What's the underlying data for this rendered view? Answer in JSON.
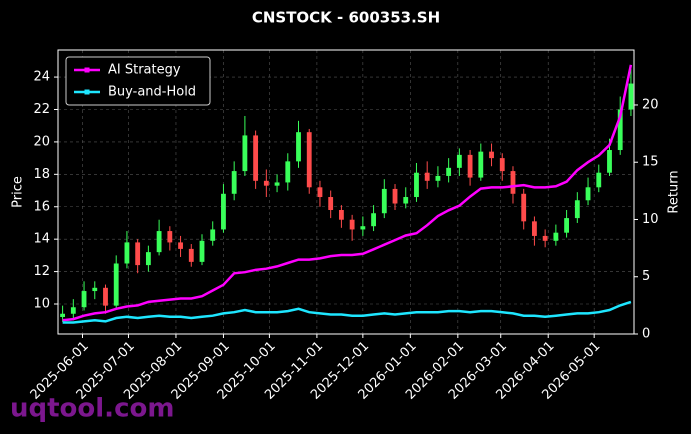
{
  "chart_data": {
    "type": "candlestick",
    "title": "CNSTOCK - 600353.SH",
    "x": [
      "2025-05-19",
      "2025-05-26",
      "2025-06-02",
      "2025-06-09",
      "2025-06-16",
      "2025-06-23",
      "2025-06-30",
      "2025-07-07",
      "2025-07-14",
      "2025-07-21",
      "2025-07-28",
      "2025-08-04",
      "2025-08-11",
      "2025-08-18",
      "2025-08-25",
      "2025-09-01",
      "2025-09-08",
      "2025-09-15",
      "2025-09-22",
      "2025-09-29",
      "2025-10-06",
      "2025-10-13",
      "2025-10-20",
      "2025-10-27",
      "2025-11-03",
      "2025-11-10",
      "2025-11-17",
      "2025-11-24",
      "2025-12-01",
      "2025-12-08",
      "2025-12-15",
      "2025-12-22",
      "2025-12-29",
      "2026-01-05",
      "2026-01-12",
      "2026-01-19",
      "2026-01-26",
      "2026-02-02",
      "2026-02-09",
      "2026-02-16",
      "2026-02-23",
      "2026-03-02",
      "2026-03-09",
      "2026-03-16",
      "2026-03-23",
      "2026-03-30",
      "2026-04-06",
      "2026-04-13",
      "2026-04-20",
      "2026-04-27",
      "2026-05-04",
      "2026-05-11",
      "2026-05-18",
      "2026-05-25"
    ],
    "open": [
      9.2,
      9.4,
      9.8,
      10.8,
      11.0,
      9.9,
      12.5,
      13.8,
      12.4,
      13.2,
      14.5,
      13.8,
      13.4,
      12.6,
      13.9,
      14.6,
      16.8,
      18.2,
      20.4,
      17.6,
      17.3,
      17.5,
      18.8,
      20.6,
      17.2,
      16.6,
      15.8,
      15.2,
      14.6,
      14.8,
      15.6,
      17.1,
      16.2,
      16.6,
      18.1,
      17.6,
      17.9,
      18.4,
      19.2,
      17.8,
      19.4,
      19.0,
      18.2,
      16.8,
      15.1,
      14.2,
      13.9,
      14.4,
      15.3,
      16.4,
      17.2,
      18.1,
      19.5,
      22.0
    ],
    "high": [
      9.9,
      10.3,
      11.4,
      11.4,
      11.2,
      13.0,
      14.5,
      14.0,
      13.6,
      15.2,
      14.8,
      14.2,
      13.7,
      14.3,
      15.1,
      17.4,
      18.8,
      21.6,
      20.7,
      18.3,
      18.0,
      19.3,
      21.3,
      20.8,
      17.6,
      17.0,
      16.1,
      15.5,
      15.4,
      16.1,
      17.7,
      17.4,
      17.2,
      18.7,
      18.8,
      18.5,
      19.0,
      19.6,
      19.5,
      19.9,
      19.9,
      19.3,
      18.5,
      17.1,
      15.4,
      14.6,
      14.9,
      15.8,
      16.9,
      17.8,
      18.6,
      20.2,
      22.8,
      24.5
    ],
    "low": [
      8.9,
      9.0,
      9.6,
      10.3,
      9.4,
      9.7,
      12.2,
      11.9,
      12.0,
      13.0,
      13.3,
      12.9,
      12.3,
      12.4,
      13.6,
      14.4,
      16.4,
      17.9,
      17.1,
      16.6,
      16.9,
      17.0,
      18.4,
      16.8,
      16.0,
      15.3,
      14.7,
      13.9,
      14.2,
      14.5,
      15.3,
      15.8,
      15.9,
      16.3,
      17.1,
      17.2,
      17.5,
      17.9,
      17.3,
      17.6,
      18.5,
      17.6,
      16.2,
      14.6,
      13.6,
      13.5,
      13.6,
      14.1,
      15.0,
      16.1,
      16.9,
      17.9,
      19.2,
      21.6
    ],
    "close": [
      9.4,
      9.8,
      10.8,
      11.0,
      9.9,
      12.5,
      13.8,
      12.4,
      13.2,
      14.5,
      13.8,
      13.4,
      12.6,
      13.9,
      14.6,
      16.8,
      18.2,
      20.4,
      17.6,
      17.3,
      17.5,
      18.8,
      20.6,
      17.2,
      16.6,
      15.8,
      15.2,
      14.6,
      14.8,
      15.6,
      17.1,
      16.2,
      16.6,
      18.1,
      17.6,
      17.9,
      18.4,
      19.2,
      17.8,
      19.4,
      19.0,
      18.2,
      16.8,
      15.1,
      14.2,
      13.9,
      14.4,
      15.3,
      16.4,
      17.2,
      18.1,
      19.5,
      22.0,
      23.6
    ],
    "up_color": "#39ff5a",
    "down_color": "#ff4b4b",
    "ylabel": "Price",
    "y2label": "Return",
    "ylim": [
      8.15,
      25.67
    ],
    "yticks": [
      10,
      12,
      14,
      16,
      18,
      20,
      22,
      24
    ],
    "y2lim": [
      0,
      24.8
    ],
    "y2ticks": [
      0,
      5,
      10,
      15,
      20
    ],
    "xlim": [
      "2025-05-16",
      "2026-05-27"
    ],
    "xticks": [
      "2025-06-01",
      "2025-07-01",
      "2025-08-01",
      "2025-09-01",
      "2025-10-01",
      "2025-11-01",
      "2025-12-01",
      "2026-01-01",
      "2026-02-01",
      "2026-03-01",
      "2026-04-01",
      "2026-05-01"
    ],
    "grid": true,
    "legend": "upper left",
    "series": [
      {
        "name": "AI Strategy",
        "color": "#ff00ff",
        "axis": "y2",
        "values": [
          1.2,
          1.3,
          1.6,
          1.8,
          1.9,
          2.2,
          2.4,
          2.5,
          2.8,
          2.9,
          3.0,
          3.1,
          3.1,
          3.3,
          3.8,
          4.3,
          5.3,
          5.4,
          5.6,
          5.7,
          5.9,
          6.2,
          6.5,
          6.5,
          6.6,
          6.8,
          6.9,
          6.9,
          7.0,
          7.4,
          7.8,
          8.2,
          8.6,
          8.8,
          9.5,
          10.3,
          10.8,
          11.2,
          12.0,
          12.7,
          12.8,
          12.8,
          12.9,
          13.0,
          12.8,
          12.8,
          12.9,
          13.3,
          14.3,
          15.0,
          15.6,
          16.5,
          19.0,
          23.5
        ]
      },
      {
        "name": "Buy-and-Hold",
        "color": "#1ee6ff",
        "axis": "y2",
        "values": [
          1.0,
          1.0,
          1.1,
          1.2,
          1.1,
          1.4,
          1.5,
          1.4,
          1.5,
          1.6,
          1.5,
          1.5,
          1.4,
          1.5,
          1.6,
          1.8,
          1.9,
          2.1,
          1.9,
          1.9,
          1.9,
          2.0,
          2.2,
          1.9,
          1.8,
          1.7,
          1.7,
          1.6,
          1.6,
          1.7,
          1.8,
          1.7,
          1.8,
          1.9,
          1.9,
          1.9,
          2.0,
          2.0,
          1.9,
          2.0,
          2.0,
          1.9,
          1.8,
          1.6,
          1.6,
          1.5,
          1.6,
          1.7,
          1.8,
          1.8,
          1.9,
          2.1,
          2.5,
          2.8
        ]
      }
    ],
    "watermark": "uqtool.com"
  }
}
